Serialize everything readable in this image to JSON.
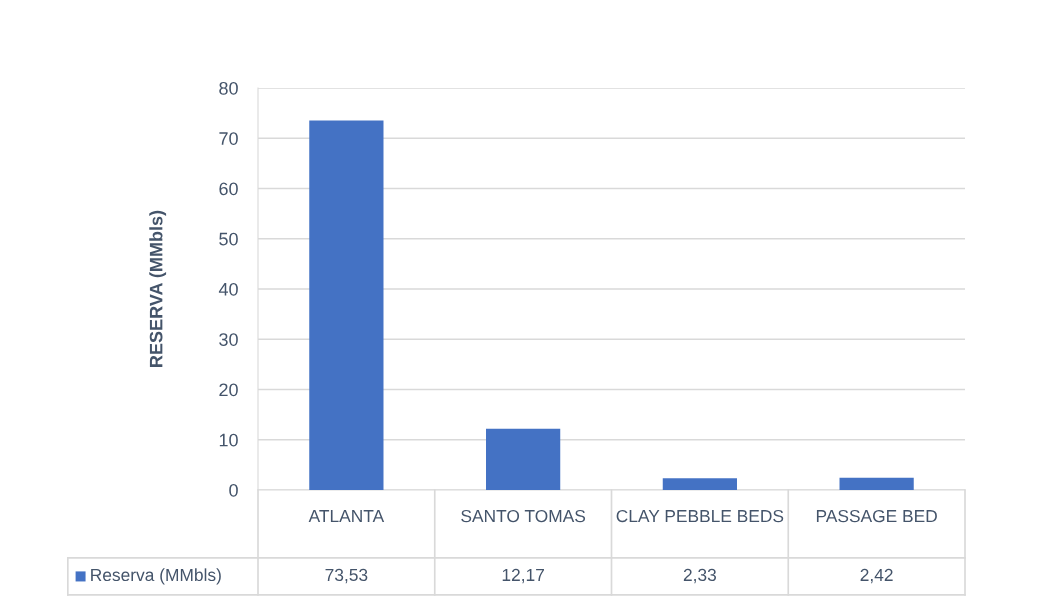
{
  "chart_data": {
    "type": "bar",
    "ylabel": "RESERVA (MMbls)",
    "categories": [
      "ATLANTA",
      "SANTO TOMAS",
      "CLAY PEBBLE BEDS",
      "PASSAGE BED"
    ],
    "series": [
      {
        "name": "Reserva (MMbls)",
        "color": "#4472c4",
        "values": [
          73.53,
          12.17,
          2.33,
          2.42
        ],
        "value_labels": [
          "73,53",
          "12,17",
          "2,33",
          "2,42"
        ]
      }
    ],
    "ylim": [
      0,
      80
    ],
    "yticks": [
      0,
      10,
      20,
      30,
      40,
      50,
      60,
      70,
      80
    ],
    "grid": "y",
    "legend": "bottom"
  }
}
